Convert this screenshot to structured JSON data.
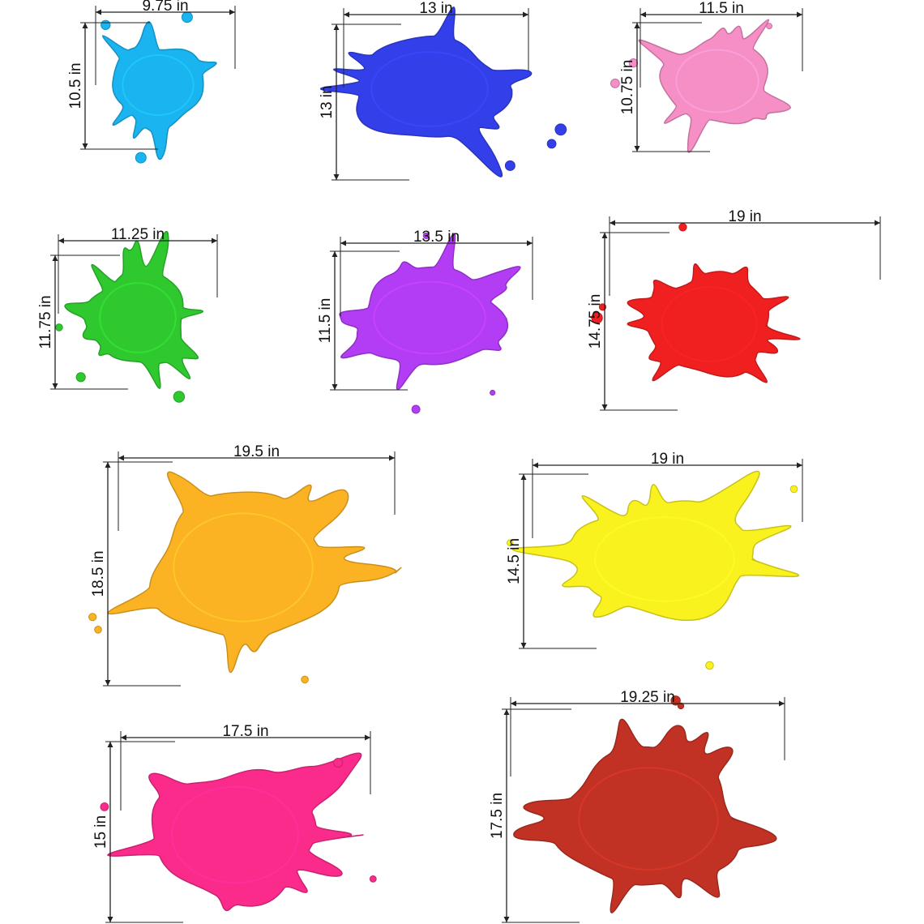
{
  "splats": [
    {
      "color": "#1ab4f0",
      "width_label": "9.75 in",
      "height_label": "10.5 in"
    },
    {
      "color": "#3340ea",
      "width_label": "13 in",
      "height_label": "13 in"
    },
    {
      "color": "#f58fc6",
      "width_label": "11.5 in",
      "height_label": "10.75 in"
    },
    {
      "color": "#2fc92f",
      "width_label": "11.25 in",
      "height_label": "11.75 in"
    },
    {
      "color": "#b33cf5",
      "width_label": "13.5 in",
      "height_label": "11.5 in"
    },
    {
      "color": "#f02020",
      "width_label": "19 in",
      "height_label": "14.75 in"
    },
    {
      "color": "#fbb324",
      "width_label": "19.5 in",
      "height_label": "18.5 in"
    },
    {
      "color": "#faf21e",
      "width_label": "19 in",
      "height_label": "14.5 in"
    },
    {
      "color": "#fb2b8c",
      "width_label": "17.5 in",
      "height_label": "15 in"
    },
    {
      "color": "#c13224",
      "width_label": "19.25 in",
      "height_label": "17.5 in"
    }
  ]
}
